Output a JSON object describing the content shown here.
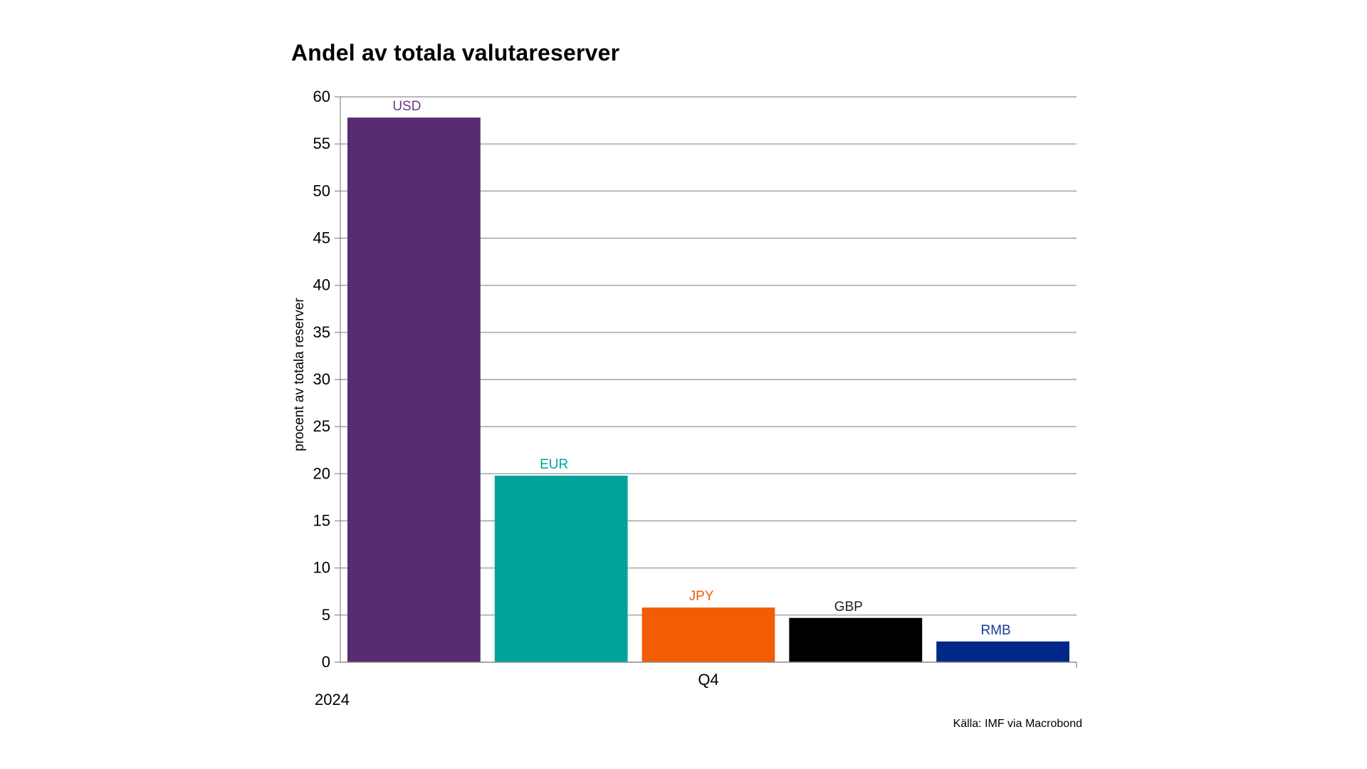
{
  "chart_data": {
    "type": "bar",
    "title": "Andel av totala valutareserver",
    "ylabel": "procent av totala reserver",
    "xlabel": "",
    "x_category": "Q4",
    "period": "2024",
    "source": "Källa: IMF via Macrobond",
    "ylim": [
      0,
      60
    ],
    "yticks": [
      0,
      5,
      10,
      15,
      20,
      25,
      30,
      35,
      40,
      45,
      50,
      55,
      60
    ],
    "grid": true,
    "legend": "none",
    "series": [
      {
        "name": "USD",
        "value": 57.8,
        "color": "#582c73",
        "label_color": "#6a3d8a"
      },
      {
        "name": "EUR",
        "value": 19.8,
        "color": "#00a49b",
        "label_color": "#00a49b"
      },
      {
        "name": "JPY",
        "value": 5.8,
        "color": "#f25c05",
        "label_color": "#f25c05"
      },
      {
        "name": "GBP",
        "value": 4.7,
        "color": "#000000",
        "label_color": "#222222"
      },
      {
        "name": "RMB",
        "value": 2.2,
        "color": "#002888",
        "label_color": "#1c3a9a"
      }
    ]
  }
}
